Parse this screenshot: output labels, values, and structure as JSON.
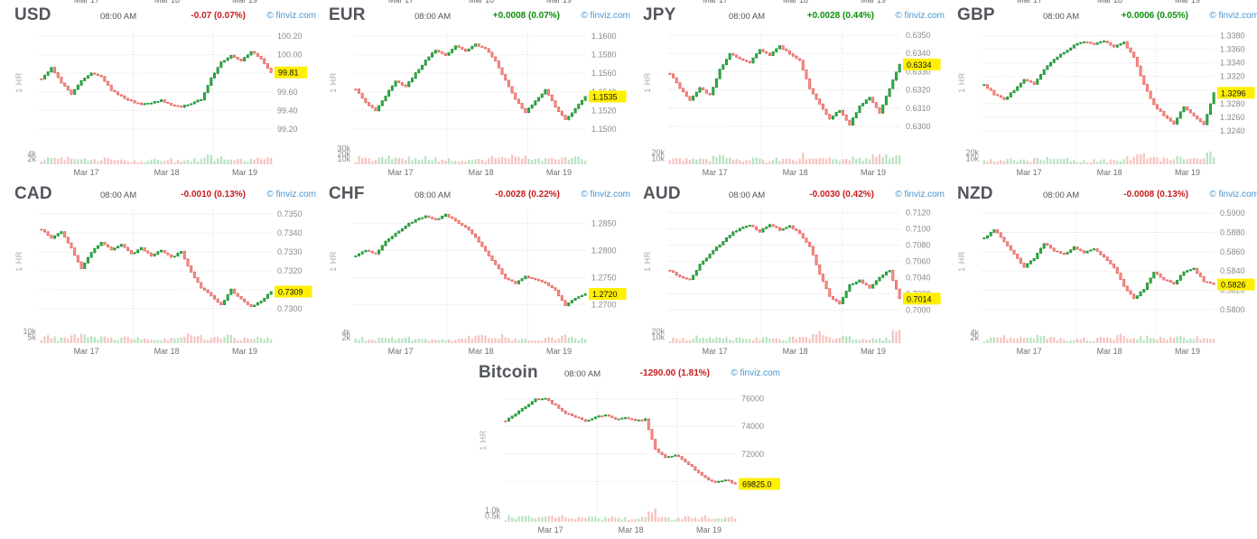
{
  "page": {
    "brand": "© finviz.com",
    "clipped_labels": [
      "Mar 17",
      "Mar 18",
      "Mar 19"
    ]
  },
  "chart_data": [
    {
      "type": "candlestick",
      "ticker": "USD",
      "time": "08:00 AM",
      "change": "-0.07 (0.07%)",
      "direction": "down",
      "timeframe": "1 HR",
      "last_price_label": "99.81",
      "last_close": 99.81,
      "ylim": [
        99.15,
        100.25
      ],
      "yticks": [
        99.2,
        99.4,
        99.6,
        99.8,
        100.0,
        100.2
      ],
      "decimals": 2,
      "x_labels": [
        "Mar 17",
        "Mar 18",
        "Mar 19"
      ],
      "vol_ticks": [
        {
          "label": "4k",
          "value": 4000
        },
        {
          "label": "2k",
          "value": 2000
        }
      ],
      "vol_max": 9000,
      "closes": [
        99.74,
        99.86,
        99.7,
        99.58,
        99.72,
        99.8,
        99.76,
        99.62,
        99.55,
        99.5,
        99.46,
        99.48,
        99.51,
        99.46,
        99.44,
        99.47,
        99.52,
        99.75,
        99.92,
        99.99,
        99.93,
        100.04,
        99.96,
        99.81
      ]
    },
    {
      "type": "candlestick",
      "ticker": "EUR",
      "time": "08:00 AM",
      "change": "+0.0008 (0.07%)",
      "direction": "up",
      "timeframe": "1 HR",
      "last_price_label": "1.1535",
      "last_close": 1.1535,
      "ylim": [
        1.1495,
        1.1605
      ],
      "yticks": [
        1.15,
        1.152,
        1.154,
        1.156,
        1.158,
        1.16
      ],
      "decimals": 4,
      "x_labels": [
        "Mar 17",
        "Mar 18",
        "Mar 19"
      ],
      "vol_ticks": [
        {
          "label": "30k",
          "value": 30000
        },
        {
          "label": "20k",
          "value": 20000
        },
        {
          "label": "10k",
          "value": 10000
        }
      ],
      "vol_max": 45000,
      "closes": [
        1.1543,
        1.1528,
        1.152,
        1.1536,
        1.1552,
        1.1546,
        1.156,
        1.1574,
        1.1585,
        1.1579,
        1.159,
        1.1584,
        1.1591,
        1.1587,
        1.1574,
        1.1552,
        1.1532,
        1.1518,
        1.153,
        1.1542,
        1.1524,
        1.151,
        1.1522,
        1.1535
      ]
    },
    {
      "type": "candlestick",
      "ticker": "JPY",
      "time": "08:00 AM",
      "change": "+0.0028 (0.44%)",
      "direction": "up",
      "timeframe": "1 HR",
      "last_price_label": "0.6334",
      "last_close": 0.6334,
      "ylim": [
        0.6296,
        0.6352
      ],
      "yticks": [
        0.63,
        0.631,
        0.632,
        0.633,
        0.634,
        0.635
      ],
      "decimals": 4,
      "x_labels": [
        "Mar 17",
        "Mar 18",
        "Mar 19"
      ],
      "vol_ticks": [
        {
          "label": "20k",
          "value": 20000
        },
        {
          "label": "10k",
          "value": 10000
        }
      ],
      "vol_max": 40000,
      "closes": [
        0.6329,
        0.6321,
        0.6314,
        0.6321,
        0.6317,
        0.6331,
        0.634,
        0.6337,
        0.6335,
        0.6342,
        0.6339,
        0.6344,
        0.634,
        0.6336,
        0.6321,
        0.6312,
        0.6304,
        0.6309,
        0.6301,
        0.6311,
        0.6316,
        0.6307,
        0.6321,
        0.6334
      ]
    },
    {
      "type": "candlestick",
      "ticker": "GBP",
      "time": "08:00 AM",
      "change": "+0.0006 (0.05%)",
      "direction": "up",
      "timeframe": "1 HR",
      "last_price_label": "1.3296",
      "last_close": 1.3296,
      "ylim": [
        1.3236,
        1.3386
      ],
      "yticks": [
        1.324,
        1.326,
        1.328,
        1.33,
        1.332,
        1.334,
        1.336,
        1.338
      ],
      "decimals": 4,
      "x_labels": [
        "Mar 17",
        "Mar 18",
        "Mar 19"
      ],
      "vol_ticks": [
        {
          "label": "20k",
          "value": 20000
        },
        {
          "label": "10k",
          "value": 10000
        }
      ],
      "vol_max": 40000,
      "closes": [
        1.3308,
        1.3294,
        1.3286,
        1.33,
        1.3316,
        1.3309,
        1.333,
        1.3346,
        1.3356,
        1.3366,
        1.3371,
        1.3367,
        1.3373,
        1.3364,
        1.337,
        1.3349,
        1.3308,
        1.3278,
        1.3263,
        1.325,
        1.3276,
        1.3262,
        1.3249,
        1.3296
      ]
    },
    {
      "type": "candlestick",
      "ticker": "CAD",
      "time": "08:00 AM",
      "change": "-0.0010 (0.13%)",
      "direction": "down",
      "timeframe": "1 HR",
      "last_price_label": "0.7309",
      "last_close": 0.7309,
      "ylim": [
        0.7298,
        0.7352
      ],
      "yticks": [
        0.73,
        0.731,
        0.732,
        0.733,
        0.734,
        0.735
      ],
      "decimals": 4,
      "x_labels": [
        "Mar 17",
        "Mar 18",
        "Mar 19"
      ],
      "vol_ticks": [
        {
          "label": "10k",
          "value": 10000
        },
        {
          "label": "5k",
          "value": 5000
        }
      ],
      "vol_max": 20000,
      "closes": [
        0.7342,
        0.7337,
        0.7341,
        0.7332,
        0.7321,
        0.733,
        0.7335,
        0.7331,
        0.7334,
        0.7329,
        0.7332,
        0.7328,
        0.7331,
        0.7327,
        0.733,
        0.7319,
        0.7311,
        0.7307,
        0.7302,
        0.731,
        0.7305,
        0.7301,
        0.7304,
        0.7309
      ]
    },
    {
      "type": "candlestick",
      "ticker": "CHF",
      "time": "08:00 AM",
      "change": "-0.0028 (0.22%)",
      "direction": "down",
      "timeframe": "1 HR",
      "last_price_label": "1.2720",
      "last_close": 1.272,
      "ylim": [
        1.2686,
        1.2874
      ],
      "yticks": [
        1.27,
        1.275,
        1.28,
        1.285
      ],
      "decimals": 4,
      "x_labels": [
        "Mar 17",
        "Mar 18",
        "Mar 19"
      ],
      "vol_ticks": [
        {
          "label": "4k",
          "value": 4000
        },
        {
          "label": "2k",
          "value": 2000
        }
      ],
      "vol_max": 9000,
      "closes": [
        1.2789,
        1.2801,
        1.2794,
        1.2816,
        1.2831,
        1.2846,
        1.2856,
        1.2863,
        1.2857,
        1.2866,
        1.2854,
        1.2844,
        1.2824,
        1.2799,
        1.2774,
        1.2749,
        1.2739,
        1.2753,
        1.2747,
        1.2741,
        1.2727,
        1.2699,
        1.2713,
        1.272
      ]
    },
    {
      "type": "candlestick",
      "ticker": "AUD",
      "time": "08:00 AM",
      "change": "-0.0030 (0.42%)",
      "direction": "down",
      "timeframe": "1 HR",
      "last_price_label": "0.7014",
      "last_close": 0.7014,
      "ylim": [
        0.6997,
        0.7123
      ],
      "yticks": [
        0.7,
        0.702,
        0.704,
        0.706,
        0.708,
        0.71,
        0.712
      ],
      "decimals": 4,
      "x_labels": [
        "Mar 17",
        "Mar 18",
        "Mar 19"
      ],
      "vol_ticks": [
        {
          "label": "20k",
          "value": 20000
        },
        {
          "label": "10k",
          "value": 10000
        }
      ],
      "vol_max": 40000,
      "closes": [
        0.7049,
        0.7041,
        0.7037,
        0.7056,
        0.7069,
        0.7081,
        0.7093,
        0.7101,
        0.7105,
        0.7097,
        0.7106,
        0.7099,
        0.7104,
        0.7094,
        0.7079,
        0.7044,
        0.7017,
        0.7007,
        0.7031,
        0.7037,
        0.7027,
        0.7041,
        0.7049,
        0.7014
      ]
    },
    {
      "type": "candlestick",
      "ticker": "NZD",
      "time": "08:00 AM",
      "change": "-0.0008 (0.13%)",
      "direction": "down",
      "timeframe": "1 HR",
      "last_price_label": "0.5826",
      "last_close": 0.5826,
      "ylim": [
        0.5797,
        0.5903
      ],
      "yticks": [
        0.58,
        0.582,
        0.584,
        0.586,
        0.588,
        0.59
      ],
      "decimals": 4,
      "x_labels": [
        "Mar 17",
        "Mar 18",
        "Mar 19"
      ],
      "vol_ticks": [
        {
          "label": "4k",
          "value": 4000
        },
        {
          "label": "2k",
          "value": 2000
        }
      ],
      "vol_max": 9000,
      "closes": [
        0.5874,
        0.5883,
        0.5871,
        0.5857,
        0.5844,
        0.5853,
        0.5869,
        0.5861,
        0.5857,
        0.5865,
        0.5859,
        0.5863,
        0.5854,
        0.5844,
        0.5824,
        0.5811,
        0.5821,
        0.5839,
        0.5831,
        0.5827,
        0.5839,
        0.5843,
        0.5829,
        0.5826
      ]
    },
    {
      "type": "candlestick",
      "ticker": "Bitcoin",
      "time": "08:00 AM",
      "change": "-1290.00 (1.81%)",
      "direction": "down",
      "timeframe": "1 HR",
      "last_price_label": "69825.0",
      "last_close": 69825,
      "ylim": [
        69300,
        76700
      ],
      "yticks": [
        70000,
        72000,
        74000,
        76000
      ],
      "decimals": 0,
      "x_labels": [
        "Mar 17",
        "Mar 18",
        "Mar 19"
      ],
      "vol_ticks": [
        {
          "label": "1.0k",
          "value": 1000
        },
        {
          "label": "0.5k",
          "value": 500
        }
      ],
      "vol_max": 2000,
      "closes": [
        74400,
        74950,
        75450,
        75950,
        76050,
        75500,
        74950,
        74700,
        74400,
        74650,
        74850,
        74500,
        74650,
        74380,
        74520,
        72350,
        71700,
        71950,
        71450,
        70850,
        70250,
        69900,
        70150,
        69825
      ]
    }
  ]
}
